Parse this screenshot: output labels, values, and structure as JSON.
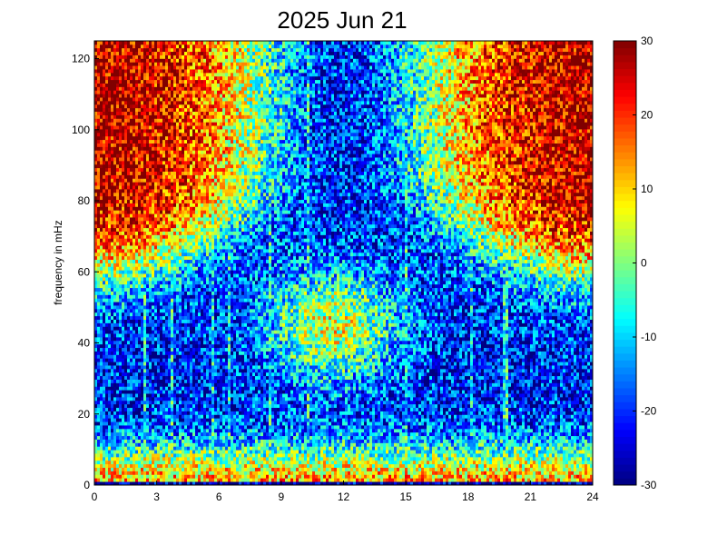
{
  "chart_data": {
    "type": "heatmap",
    "title": "2025 Jun 21",
    "xlabel": "",
    "ylabel": "frequency in mHz",
    "xlim": [
      0,
      24
    ],
    "ylim": [
      0,
      125
    ],
    "x_ticks": [
      "0",
      "3",
      "6",
      "9",
      "12",
      "15",
      "18",
      "21",
      "24"
    ],
    "x_tick_values": [
      0,
      3,
      6,
      9,
      12,
      15,
      18,
      21,
      24
    ],
    "y_ticks": [
      "0",
      "20",
      "40",
      "60",
      "80",
      "100",
      "120"
    ],
    "y_tick_values": [
      0,
      20,
      40,
      60,
      80,
      100,
      120
    ],
    "colorbar": {
      "colormap": "jet",
      "clim": [
        -30,
        30
      ],
      "ticks": [
        "-30",
        "-20",
        "-10",
        "0",
        "10",
        "20",
        "30"
      ],
      "tick_values": [
        -30,
        -20,
        -10,
        0,
        10,
        20,
        30
      ]
    },
    "grid": false,
    "description_of_field": {
      "high_freq_background_value": 30,
      "low_freq_band_value": 12,
      "midday_bump_center_hour": 12,
      "midday_bump_peak_mhz": 45,
      "midday_bump_value": 8,
      "vertical_streaks_hours": [
        2.4,
        3.7,
        5.7,
        6.5,
        8.5,
        10.3,
        15.0,
        18.2,
        19.8
      ]
    }
  }
}
